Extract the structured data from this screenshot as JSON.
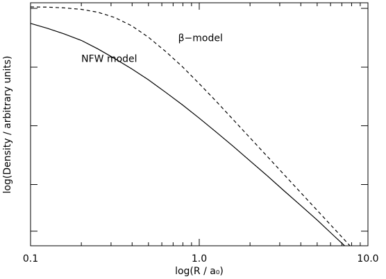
{
  "chart_data": {
    "type": "line",
    "xscale": "log",
    "xlim": [
      0.1,
      10.0
    ],
    "xticks": [
      {
        "value": 0.1,
        "label": "0.1"
      },
      {
        "value": 1.0,
        "label": "1.0"
      },
      {
        "value": 10.0,
        "label": "10.0"
      }
    ],
    "xlabel": "log(R / a₀)",
    "ylabel": "log(Density / arbitrary units)",
    "yticks_labeled": false,
    "grid": false,
    "legend": "none",
    "series": [
      {
        "name": "NFW model",
        "style": "solid",
        "color": "#000000",
        "points": [
          [
            0.1,
            0.915
          ],
          [
            0.126,
            0.895
          ],
          [
            0.158,
            0.872
          ],
          [
            0.2,
            0.845
          ],
          [
            0.251,
            0.81
          ],
          [
            0.316,
            0.77
          ],
          [
            0.398,
            0.728
          ],
          [
            0.5,
            0.683
          ],
          [
            0.631,
            0.632
          ],
          [
            0.794,
            0.58
          ],
          [
            1.0,
            0.525
          ],
          [
            1.259,
            0.468
          ],
          [
            1.585,
            0.41
          ],
          [
            1.995,
            0.35
          ],
          [
            2.512,
            0.29
          ],
          [
            3.162,
            0.228
          ],
          [
            3.981,
            0.167
          ],
          [
            5.012,
            0.105
          ],
          [
            6.31,
            0.04
          ],
          [
            7.943,
            -0.025
          ],
          [
            10.0,
            -0.09
          ]
        ]
      },
      {
        "name": "β−model",
        "style": "dashed",
        "color": "#000000",
        "points": [
          [
            0.1,
            0.983
          ],
          [
            0.126,
            0.982
          ],
          [
            0.158,
            0.979
          ],
          [
            0.2,
            0.973
          ],
          [
            0.251,
            0.961
          ],
          [
            0.316,
            0.939
          ],
          [
            0.398,
            0.905
          ],
          [
            0.5,
            0.858
          ],
          [
            0.631,
            0.8
          ],
          [
            0.794,
            0.737
          ],
          [
            1.0,
            0.667
          ],
          [
            1.259,
            0.595
          ],
          [
            1.585,
            0.52
          ],
          [
            1.995,
            0.445
          ],
          [
            2.512,
            0.37
          ],
          [
            3.162,
            0.295
          ],
          [
            3.981,
            0.22
          ],
          [
            5.012,
            0.145
          ],
          [
            6.31,
            0.07
          ],
          [
            7.943,
            -0.005
          ],
          [
            10.0,
            -0.078
          ]
        ]
      }
    ],
    "annotations": [
      {
        "text": "NFW model",
        "x": 0.2,
        "y": 0.757
      },
      {
        "text": "β−model",
        "x": 0.75,
        "y": 0.842
      }
    ]
  }
}
